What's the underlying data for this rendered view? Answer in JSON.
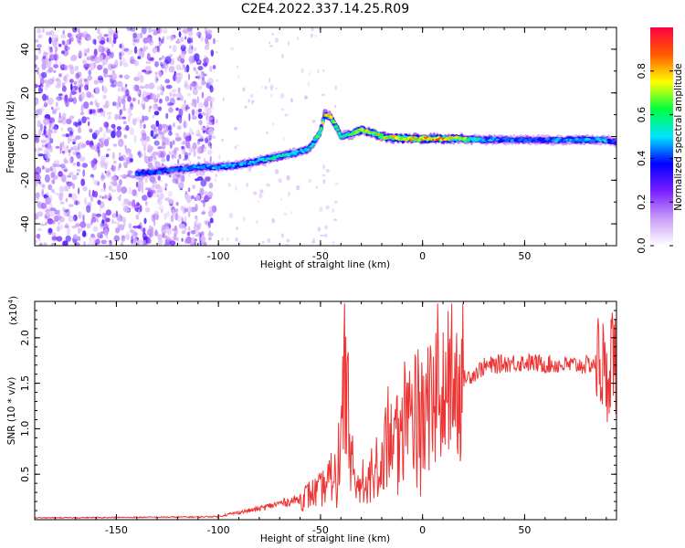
{
  "title": "C2E4.2022.337.14.25.R09",
  "chart_data": [
    {
      "type": "heatmap",
      "name": "spectrogram",
      "xlabel": "Height of straight line (km)",
      "ylabel": "Frequency (Hz)",
      "xlim": [
        -190,
        95
      ],
      "ylim": [
        -50,
        50
      ],
      "x_ticks": [
        -150,
        -100,
        -50,
        0,
        50
      ],
      "y_ticks": [
        -40,
        -20,
        0,
        20,
        40
      ],
      "colorbar": {
        "label": "Normalized spectral amplitude",
        "range": [
          0,
          1
        ],
        "ticks": [
          0.0,
          0.2,
          0.4,
          0.6,
          0.8
        ],
        "tick_labels": [
          "0.0",
          "0.2",
          "0.4",
          "0.6",
          "0.8"
        ],
        "colors": [
          "#ffffff",
          "#c89cf8",
          "#7a1fff",
          "#0000ff",
          "#00e5ff",
          "#00ff40",
          "#ffff00",
          "#ff5a00",
          "#ff0040"
        ]
      },
      "ridge": {
        "x": [
          -140,
          -130,
          -120,
          -110,
          -100,
          -90,
          -80,
          -70,
          -60,
          -55,
          -50,
          -48,
          -45,
          -42,
          -40,
          -35,
          -30,
          -25,
          -20,
          -10,
          0,
          10,
          20,
          30,
          40,
          50,
          60,
          70,
          80,
          90,
          95
        ],
        "y": [
          -17,
          -16,
          -15,
          -14,
          -14,
          -13,
          -11,
          -9,
          -7,
          -5,
          2,
          10,
          9,
          4,
          0,
          1,
          3,
          2,
          0,
          -1,
          -1,
          -1,
          -1,
          -1.5,
          -1.5,
          -1.5,
          -1.5,
          -1.5,
          -1.5,
          -1.5,
          -3
        ],
        "amplitude": [
          0.4,
          0.4,
          0.42,
          0.45,
          0.45,
          0.45,
          0.5,
          0.55,
          0.5,
          0.5,
          0.62,
          0.78,
          0.7,
          0.55,
          0.55,
          0.6,
          0.7,
          0.7,
          0.72,
          0.75,
          0.8,
          0.8,
          0.65,
          0.45,
          0.42,
          0.4,
          0.4,
          0.45,
          0.5,
          0.45,
          0.35
        ]
      },
      "noise_region": [
        -190,
        -102
      ]
    },
    {
      "type": "line",
      "name": "snr",
      "xlabel": "Height of straight line (km)",
      "ylabel": "SNR (10 * v/v)",
      "scale_label": "(x10",
      "scale_exponent": "4",
      "xlim": [
        -190,
        95
      ],
      "ylim": [
        0,
        24000
      ],
      "x_ticks": [
        -150,
        -100,
        -50,
        0,
        50
      ],
      "y_ticks": [
        5000,
        10000,
        15000,
        20000
      ],
      "y_tick_labels": [
        "0.5",
        "1.0",
        "1.5",
        "2.0"
      ],
      "color": "#ee3333",
      "x": [
        -190,
        -150,
        -110,
        -100,
        -95,
        -90,
        -85,
        -80,
        -75,
        -70,
        -65,
        -60,
        -55,
        -50,
        -45,
        -42,
        -40,
        -38,
        -36,
        -35,
        -33,
        -30,
        -25,
        -20,
        -15,
        -10,
        -5,
        0,
        5,
        10,
        15,
        20,
        25,
        30,
        40,
        50,
        60,
        70,
        80,
        85,
        88,
        90,
        92,
        95
      ],
      "y": [
        200,
        250,
        300,
        350,
        600,
        800,
        1000,
        1200,
        1500,
        1800,
        2000,
        2300,
        2800,
        3200,
        4500,
        6000,
        9000,
        14000,
        11000,
        7000,
        4500,
        3000,
        5000,
        7000,
        9000,
        10000,
        11000,
        12500,
        13000,
        14000,
        15000,
        15500,
        16000,
        16800,
        17200,
        17300,
        17100,
        17000,
        17000,
        17200,
        17500,
        14000,
        19000,
        17000
      ]
    }
  ]
}
